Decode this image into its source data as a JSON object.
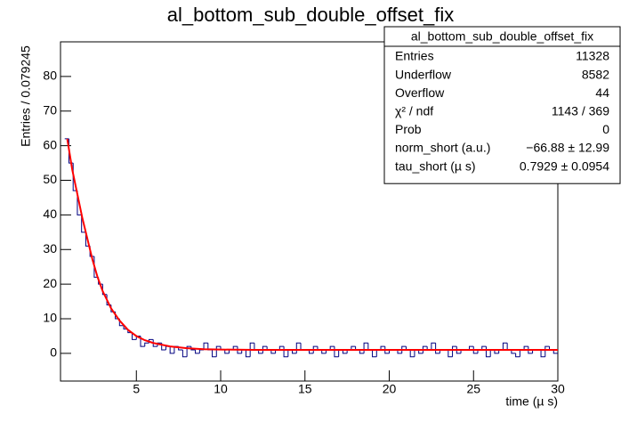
{
  "chart_data": {
    "type": "histogram",
    "title": "al_bottom_sub_double_offset_fix",
    "x_label": "time (µ s)",
    "y_label": "Entries / 0.079245",
    "xlim": [
      0.5,
      30
    ],
    "ylim": [
      -8,
      90
    ],
    "xticks": [
      5,
      10,
      15,
      20,
      25,
      30
    ],
    "yticks": [
      0,
      10,
      20,
      30,
      40,
      50,
      60,
      70,
      80
    ],
    "color": "#000080",
    "bins": [
      0.75,
      1,
      1.25,
      1.5,
      1.75,
      2,
      2.25,
      2.5,
      2.75,
      3,
      3.25,
      3.5,
      3.75,
      4,
      4.25,
      4.5,
      4.75,
      5,
      5.25,
      5.5,
      5.75,
      6,
      6.25,
      6.5,
      6.75,
      7,
      7.25,
      7.5,
      7.75,
      8,
      8.25,
      8.5,
      8.75,
      9,
      9.25,
      9.5,
      9.75,
      10,
      10.25,
      10.5,
      10.75,
      11,
      11.25,
      11.5,
      11.75,
      12,
      12.25,
      12.5,
      12.75,
      13,
      13.25,
      13.5,
      13.75,
      14,
      14.25,
      14.5,
      14.75,
      15,
      15.25,
      15.5,
      15.75,
      16,
      16.25,
      16.5,
      16.75,
      17,
      17.25,
      17.5,
      17.75,
      18,
      18.25,
      18.5,
      18.75,
      19,
      19.25,
      19.5,
      19.75,
      20,
      20.25,
      20.5,
      20.75,
      21,
      21.25,
      21.5,
      21.75,
      22,
      22.25,
      22.5,
      22.75,
      23,
      23.25,
      23.5,
      23.75,
      24,
      24.25,
      24.5,
      24.75,
      25,
      25.25,
      25.5,
      25.75,
      26,
      26.25,
      26.5,
      26.75,
      27,
      27.25,
      27.5,
      27.75,
      28,
      28.25,
      28.5,
      28.75,
      29,
      29.25,
      29.5,
      29.75,
      30
    ],
    "values": [
      62,
      55,
      47,
      40,
      35,
      31,
      28,
      22,
      20,
      17,
      14,
      12,
      10,
      8,
      7,
      6,
      4,
      5,
      2,
      3,
      4,
      2,
      3,
      1,
      2,
      0,
      2,
      1,
      -1,
      2,
      1,
      0,
      1,
      3,
      1,
      -1,
      2,
      1,
      0,
      1,
      2,
      0,
      1,
      -1,
      3,
      1,
      0,
      2,
      1,
      0,
      1,
      2,
      -1,
      1,
      0,
      3,
      1,
      1,
      0,
      2,
      1,
      0,
      1,
      2,
      -1,
      1,
      0,
      1,
      2,
      1,
      0,
      3,
      1,
      -1,
      1,
      2,
      0,
      1,
      1,
      0,
      2,
      1,
      -1,
      1,
      0,
      2,
      1,
      3,
      0,
      1,
      1,
      -1,
      2,
      0,
      1,
      1,
      2,
      0,
      1,
      2,
      -1,
      1,
      0,
      1,
      3,
      1,
      0,
      -1,
      1,
      2,
      0,
      1,
      1,
      -1,
      2,
      1,
      0
    ],
    "fit": {
      "color": "#ff0000",
      "x": [
        0.9,
        1.2,
        1.5,
        1.8,
        2.1,
        2.4,
        2.7,
        3,
        3.5,
        4,
        4.5,
        5,
        5.5,
        6,
        7,
        8,
        9,
        10,
        12,
        15,
        20,
        25,
        30
      ],
      "y": [
        62,
        53,
        46,
        39,
        33,
        27,
        22,
        18,
        13,
        9.5,
        6.8,
        5,
        3.8,
        3,
        2,
        1.5,
        1.2,
        1.1,
        1,
        1,
        1,
        1,
        1
      ]
    },
    "stats": {
      "title": "al_bottom_sub_double_offset_fix",
      "rows": [
        [
          "Entries",
          "11328"
        ],
        [
          "Underflow",
          "8582"
        ],
        [
          "Overflow",
          "44"
        ],
        [
          "χ² / ndf",
          "1143 / 369"
        ],
        [
          "Prob",
          "0"
        ],
        [
          "norm_short (a.u.)",
          "−66.88 ± 12.99"
        ],
        [
          "tau_short (µ s)",
          "0.7929 ± 0.0954"
        ]
      ]
    }
  }
}
